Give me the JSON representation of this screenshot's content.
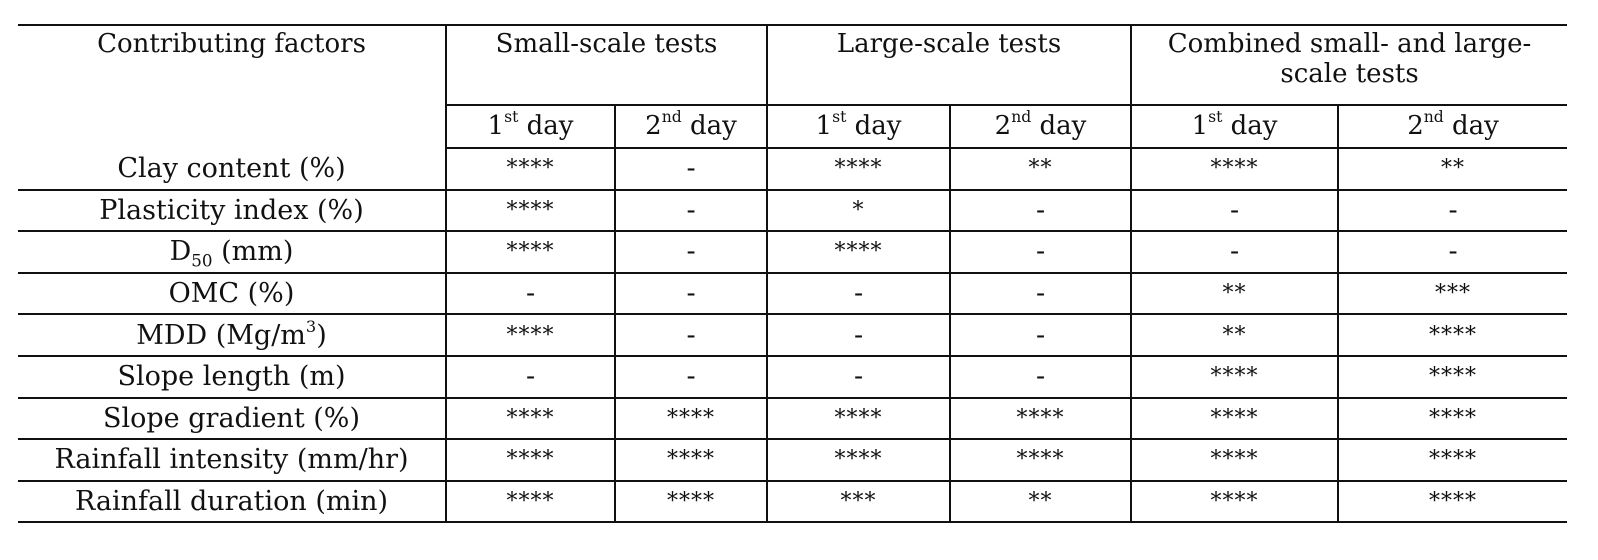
{
  "table": {
    "factor_header": "Contributing factors",
    "groups": [
      {
        "label": "Small-scale tests"
      },
      {
        "label": "Large-scale tests"
      },
      {
        "label": "Combined small- and large-scale tests"
      }
    ],
    "day_headers": [
      {
        "num": "1",
        "suffix": "st",
        "word": "day"
      },
      {
        "num": "2",
        "suffix": "nd",
        "word": "day"
      },
      {
        "num": "1",
        "suffix": "st",
        "word": "day"
      },
      {
        "num": "2",
        "suffix": "nd",
        "word": "day"
      },
      {
        "num": "1",
        "suffix": "st",
        "word": "day"
      },
      {
        "num": "2",
        "suffix": "nd",
        "word": "day"
      }
    ],
    "rows": [
      {
        "factor": "Clay content (%)",
        "values": [
          "****",
          "-",
          "****",
          "**",
          "****",
          "**"
        ]
      },
      {
        "factor": "Plasticity index (%)",
        "values": [
          "****",
          "-",
          "*",
          "-",
          "-",
          "-"
        ]
      },
      {
        "factor_main": "D",
        "factor_sub": "50",
        "factor_rest": " (mm)",
        "values": [
          "****",
          "-",
          "****",
          "-",
          "-",
          "-"
        ]
      },
      {
        "factor": "OMC (%)",
        "values": [
          "-",
          "-",
          "-",
          "-",
          "**",
          "***"
        ]
      },
      {
        "factor_main": "MDD (Mg/m",
        "factor_sup": "3",
        "factor_rest": ")",
        "values": [
          "****",
          "-",
          "-",
          "-",
          "**",
          "****"
        ]
      },
      {
        "factor": "Slope length (m)",
        "values": [
          "-",
          "-",
          "-",
          "-",
          "****",
          "****"
        ]
      },
      {
        "factor": "Slope gradient (%)",
        "values": [
          "****",
          "****",
          "****",
          "****",
          "****",
          "****"
        ]
      },
      {
        "factor": "Rainfall intensity (mm/hr)",
        "values": [
          "****",
          "****",
          "****",
          "****",
          "****",
          "****"
        ]
      },
      {
        "factor": "Rainfall duration (min)",
        "values": [
          "****",
          "****",
          "***",
          "**",
          "****",
          "****"
        ]
      }
    ]
  }
}
